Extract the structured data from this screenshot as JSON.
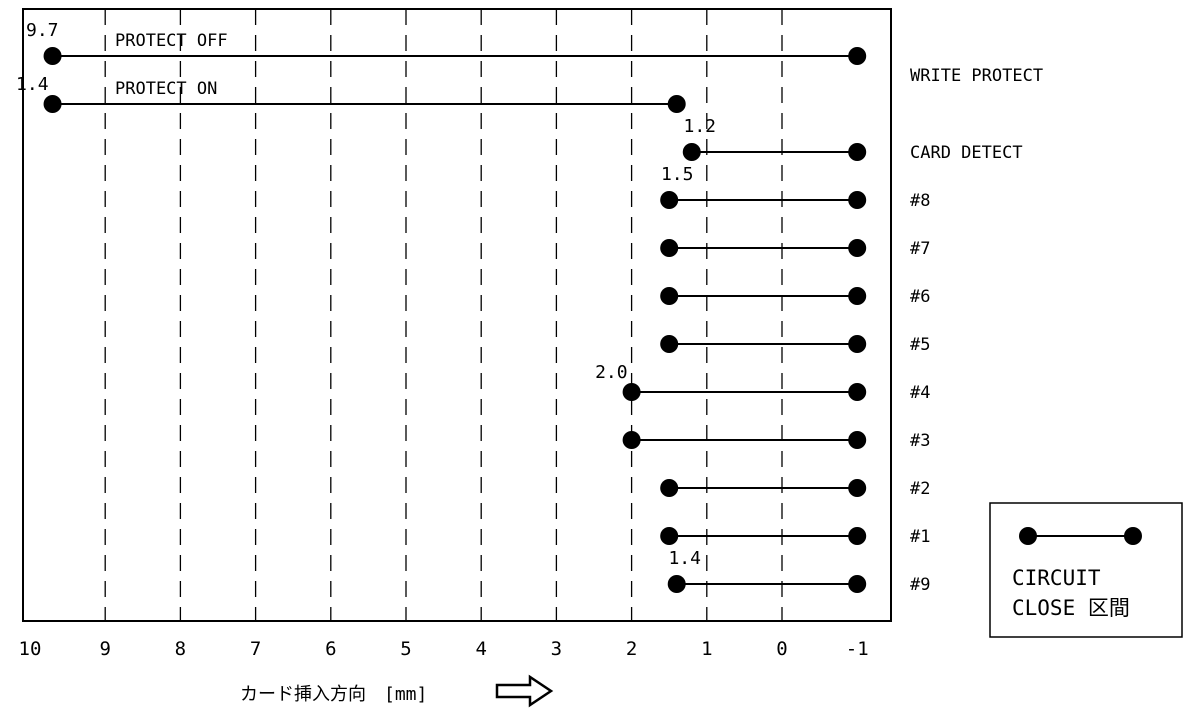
{
  "axis": {
    "title": "カード挿入方向　[mm]",
    "ticks": [
      "10",
      "9",
      "8",
      "7",
      "6",
      "5",
      "4",
      "3",
      "2",
      "1",
      "0",
      "-1"
    ],
    "tick_values": [
      10,
      9,
      8,
      7,
      6,
      5,
      4,
      3,
      2,
      1,
      0,
      -1
    ],
    "direction_icon": "arrow-right-icon"
  },
  "rows": [
    {
      "label": "",
      "start": 9.7,
      "end": -1,
      "value_label": "9.7",
      "state_label": "PROTECT OFF"
    },
    {
      "label": "WRITE PROTECT",
      "start": 9.7,
      "end": 1.4,
      "value_label": "1.4",
      "state_label": "PROTECT ON"
    },
    {
      "label": "CARD DETECT",
      "start": 1.2,
      "end": -1,
      "value_label": "1.2",
      "state_label": ""
    },
    {
      "label": "#8",
      "start": 1.5,
      "end": -1,
      "value_label": "1.5",
      "state_label": ""
    },
    {
      "label": "#7",
      "start": 1.5,
      "end": -1,
      "value_label": "",
      "state_label": ""
    },
    {
      "label": "#6",
      "start": 1.5,
      "end": -1,
      "value_label": "",
      "state_label": ""
    },
    {
      "label": "#5",
      "start": 1.5,
      "end": -1,
      "value_label": "",
      "state_label": ""
    },
    {
      "label": "#4",
      "start": 2.0,
      "end": -1,
      "value_label": "2.0",
      "state_label": ""
    },
    {
      "label": "#3",
      "start": 2.0,
      "end": -1,
      "value_label": "",
      "state_label": ""
    },
    {
      "label": "#2",
      "start": 1.5,
      "end": -1,
      "value_label": "",
      "state_label": ""
    },
    {
      "label": "#1",
      "start": 1.5,
      "end": -1,
      "value_label": "",
      "state_label": ""
    },
    {
      "label": "#9",
      "start": 1.4,
      "end": -1,
      "value_label": "1.4",
      "state_label": ""
    }
  ],
  "legend": {
    "line1": "CIRCUIT",
    "line2": "CLOSE 区間",
    "icon": "closed-circuit-interval-icon"
  }
}
